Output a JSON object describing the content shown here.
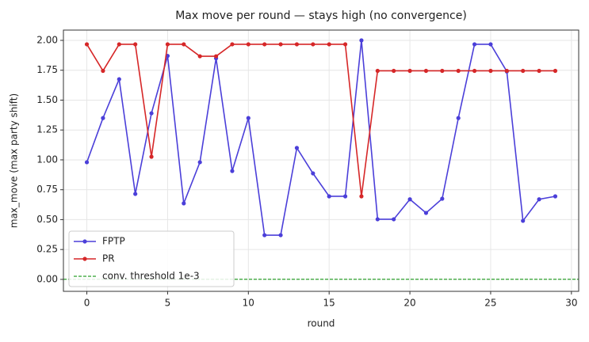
{
  "chart_data": {
    "type": "line",
    "title": "Max move per round — stays high (no convergence)",
    "xlabel": "round",
    "ylabel": "max_move (max party shift)",
    "x": [
      0,
      1,
      2,
      3,
      4,
      5,
      6,
      7,
      8,
      9,
      10,
      11,
      12,
      13,
      14,
      15,
      16,
      17,
      18,
      19,
      20,
      21,
      22,
      23,
      24,
      25,
      26,
      27,
      28,
      29
    ],
    "series": [
      {
        "name": "FPTP",
        "color": "#4b3fd9",
        "values": [
          0.98,
          1.35,
          1.675,
          0.715,
          1.39,
          1.87,
          0.636,
          0.98,
          1.85,
          0.907,
          1.35,
          0.37,
          0.37,
          1.1,
          0.887,
          0.695,
          0.695,
          2.0,
          0.503,
          0.503,
          0.67,
          0.556,
          0.675,
          1.35,
          1.967,
          1.967,
          1.74,
          0.49,
          0.67,
          0.695
        ]
      },
      {
        "name": "PR",
        "color": "#d62728",
        "values": [
          1.967,
          1.745,
          1.967,
          1.967,
          1.026,
          1.967,
          1.967,
          1.867,
          1.867,
          1.967,
          1.967,
          1.967,
          1.967,
          1.967,
          1.967,
          1.967,
          1.967,
          0.695,
          1.745,
          1.745,
          1.745,
          1.745,
          1.745,
          1.745,
          1.745,
          1.745,
          1.745,
          1.745,
          1.745,
          1.745
        ]
      }
    ],
    "hlines": [
      {
        "name": "conv. threshold 1e-3",
        "color": "#2ca02c",
        "value": 0.001
      }
    ],
    "xlim": [
      -1.45,
      30.45
    ],
    "xticks": [
      0,
      5,
      10,
      15,
      20,
      25,
      30
    ],
    "ylim": [
      -0.1,
      2.086
    ],
    "yticks": [
      {
        "value": 0,
        "label": "0.00"
      },
      {
        "value": 0.25,
        "label": "0.25"
      },
      {
        "value": 0.5,
        "label": "0.50"
      },
      {
        "value": 0.75,
        "label": "0.75"
      },
      {
        "value": 1,
        "label": "1.00"
      },
      {
        "value": 1.25,
        "label": "1.25"
      },
      {
        "value": 1.5,
        "label": "1.50"
      },
      {
        "value": 1.75,
        "label": "1.75"
      },
      {
        "value": 2,
        "label": "2.00"
      }
    ],
    "grid": true,
    "legend": "lower left"
  }
}
